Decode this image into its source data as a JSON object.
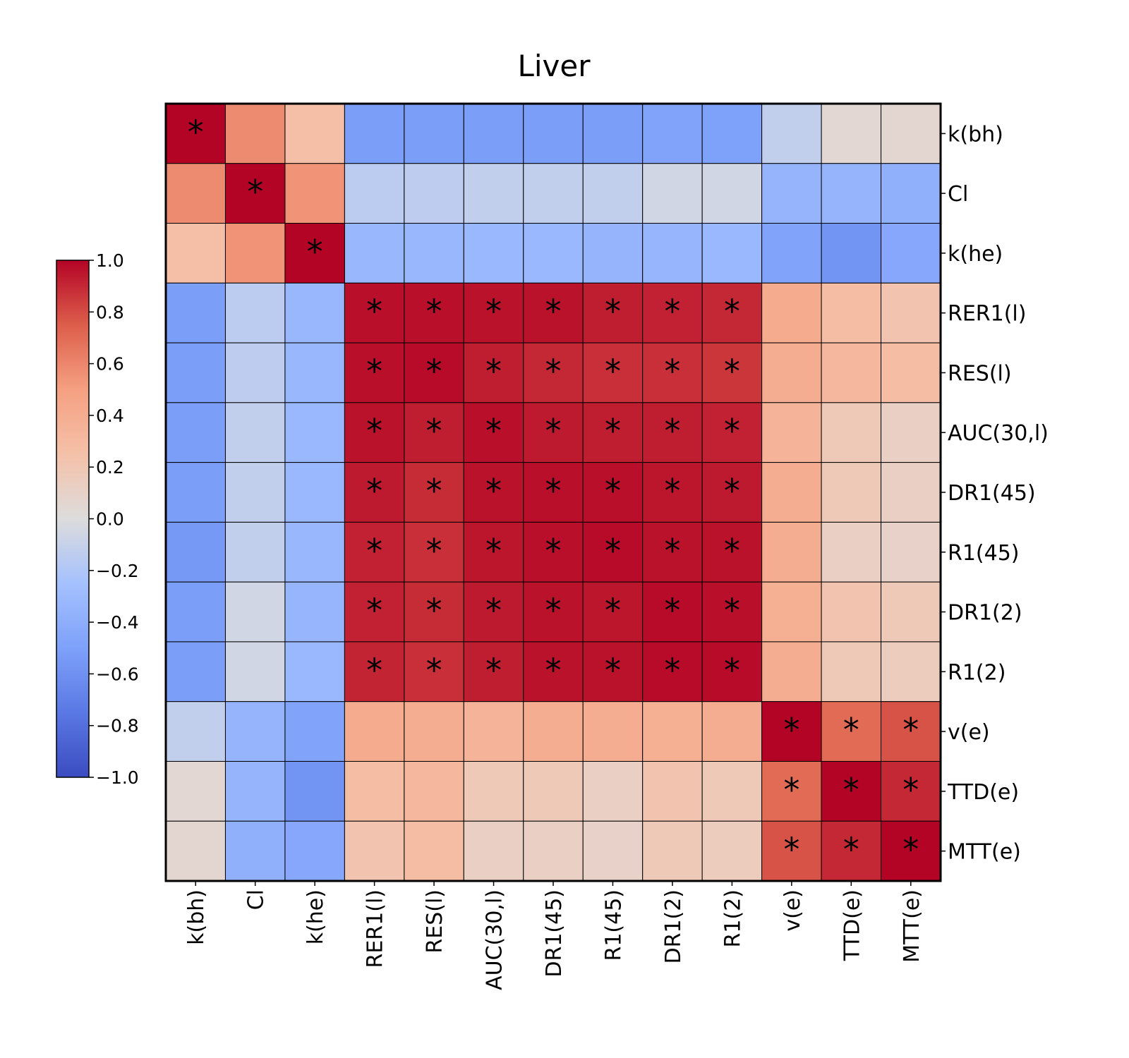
{
  "chart_data": {
    "type": "heatmap",
    "title": "Liver",
    "row_labels": [
      "k(bh)",
      "Cl",
      "k(he)",
      "RER1(l)",
      "RES(l)",
      "AUC(30,l)",
      "DR1(45)",
      "R1(45)",
      "DR1(2)",
      "R1(2)",
      "v(e)",
      "TTD(e)",
      "MTT(e)"
    ],
    "col_labels": [
      "k(bh)",
      "Cl",
      "k(he)",
      "RER1(l)",
      "RES(l)",
      "AUC(30,l)",
      "DR1(45)",
      "R1(45)",
      "DR1(2)",
      "R1(2)",
      "v(e)",
      "TTD(e)",
      "MTT(e)"
    ],
    "values": [
      [
        1.0,
        0.58,
        0.27,
        -0.52,
        -0.52,
        -0.52,
        -0.52,
        -0.52,
        -0.48,
        -0.5,
        -0.12,
        0.05,
        0.06
      ],
      [
        0.58,
        1.0,
        0.55,
        -0.15,
        -0.14,
        -0.12,
        -0.12,
        -0.12,
        -0.06,
        -0.06,
        -0.35,
        -0.35,
        -0.38
      ],
      [
        0.27,
        0.55,
        1.0,
        -0.33,
        -0.33,
        -0.32,
        -0.32,
        -0.35,
        -0.34,
        -0.32,
        -0.48,
        -0.58,
        -0.45
      ],
      [
        -0.52,
        -0.15,
        -0.33,
        0.97,
        0.97,
        0.96,
        0.96,
        0.93,
        0.92,
        0.9,
        0.42,
        0.28,
        0.22
      ],
      [
        -0.52,
        -0.14,
        -0.33,
        0.97,
        0.98,
        0.93,
        0.9,
        0.88,
        0.88,
        0.86,
        0.4,
        0.32,
        0.28
      ],
      [
        -0.52,
        -0.12,
        -0.32,
        0.96,
        0.93,
        0.97,
        0.94,
        0.93,
        0.93,
        0.92,
        0.35,
        0.18,
        0.12
      ],
      [
        -0.52,
        -0.12,
        -0.32,
        0.94,
        0.89,
        0.96,
        0.97,
        0.97,
        0.95,
        0.94,
        0.4,
        0.18,
        0.12
      ],
      [
        -0.55,
        -0.12,
        -0.33,
        0.92,
        0.88,
        0.95,
        0.97,
        0.98,
        0.96,
        0.96,
        0.4,
        0.12,
        0.1
      ],
      [
        -0.52,
        -0.06,
        -0.34,
        0.92,
        0.89,
        0.94,
        0.96,
        0.95,
        0.98,
        0.97,
        0.38,
        0.22,
        0.18
      ],
      [
        -0.52,
        -0.06,
        -0.32,
        0.91,
        0.88,
        0.93,
        0.96,
        0.96,
        0.98,
        0.98,
        0.4,
        0.18,
        0.15
      ],
      [
        -0.12,
        -0.35,
        -0.48,
        0.42,
        0.4,
        0.35,
        0.4,
        0.4,
        0.38,
        0.4,
        1.0,
        0.7,
        0.78
      ],
      [
        0.05,
        -0.35,
        -0.58,
        0.28,
        0.32,
        0.18,
        0.18,
        0.12,
        0.22,
        0.18,
        0.7,
        1.0,
        0.9
      ],
      [
        0.06,
        -0.38,
        -0.45,
        0.22,
        0.28,
        0.12,
        0.12,
        0.1,
        0.18,
        0.15,
        0.78,
        0.9,
        1.0
      ]
    ],
    "significance_marker": "*",
    "significant": [
      [
        1,
        0,
        0,
        0,
        0,
        0,
        0,
        0,
        0,
        0,
        0,
        0,
        0
      ],
      [
        0,
        1,
        0,
        0,
        0,
        0,
        0,
        0,
        0,
        0,
        0,
        0,
        0
      ],
      [
        0,
        0,
        1,
        0,
        0,
        0,
        0,
        0,
        0,
        0,
        0,
        0,
        0
      ],
      [
        0,
        0,
        0,
        1,
        1,
        1,
        1,
        1,
        1,
        1,
        0,
        0,
        0
      ],
      [
        0,
        0,
        0,
        1,
        1,
        1,
        1,
        1,
        1,
        1,
        0,
        0,
        0
      ],
      [
        0,
        0,
        0,
        1,
        1,
        1,
        1,
        1,
        1,
        1,
        0,
        0,
        0
      ],
      [
        0,
        0,
        0,
        1,
        1,
        1,
        1,
        1,
        1,
        1,
        0,
        0,
        0
      ],
      [
        0,
        0,
        0,
        1,
        1,
        1,
        1,
        1,
        1,
        1,
        0,
        0,
        0
      ],
      [
        0,
        0,
        0,
        1,
        1,
        1,
        1,
        1,
        1,
        1,
        0,
        0,
        0
      ],
      [
        0,
        0,
        0,
        1,
        1,
        1,
        1,
        1,
        1,
        1,
        0,
        0,
        0
      ],
      [
        0,
        0,
        0,
        0,
        0,
        0,
        0,
        0,
        0,
        0,
        1,
        1,
        1
      ],
      [
        0,
        0,
        0,
        0,
        0,
        0,
        0,
        0,
        0,
        0,
        1,
        1,
        1
      ],
      [
        0,
        0,
        0,
        0,
        0,
        0,
        0,
        0,
        0,
        0,
        1,
        1,
        1
      ]
    ],
    "colorscale": "coolwarm",
    "vmin": -1.0,
    "vmax": 1.0,
    "colorbar_ticks": [
      "1.0",
      "0.8",
      "0.6",
      "0.4",
      "0.2",
      "0.0",
      "−0.2",
      "−0.4",
      "−0.6",
      "−0.8",
      "−1.0"
    ],
    "colorbar_placement": "left",
    "row_label_placement": "right",
    "col_label_placement": "bottom",
    "grid": true
  }
}
